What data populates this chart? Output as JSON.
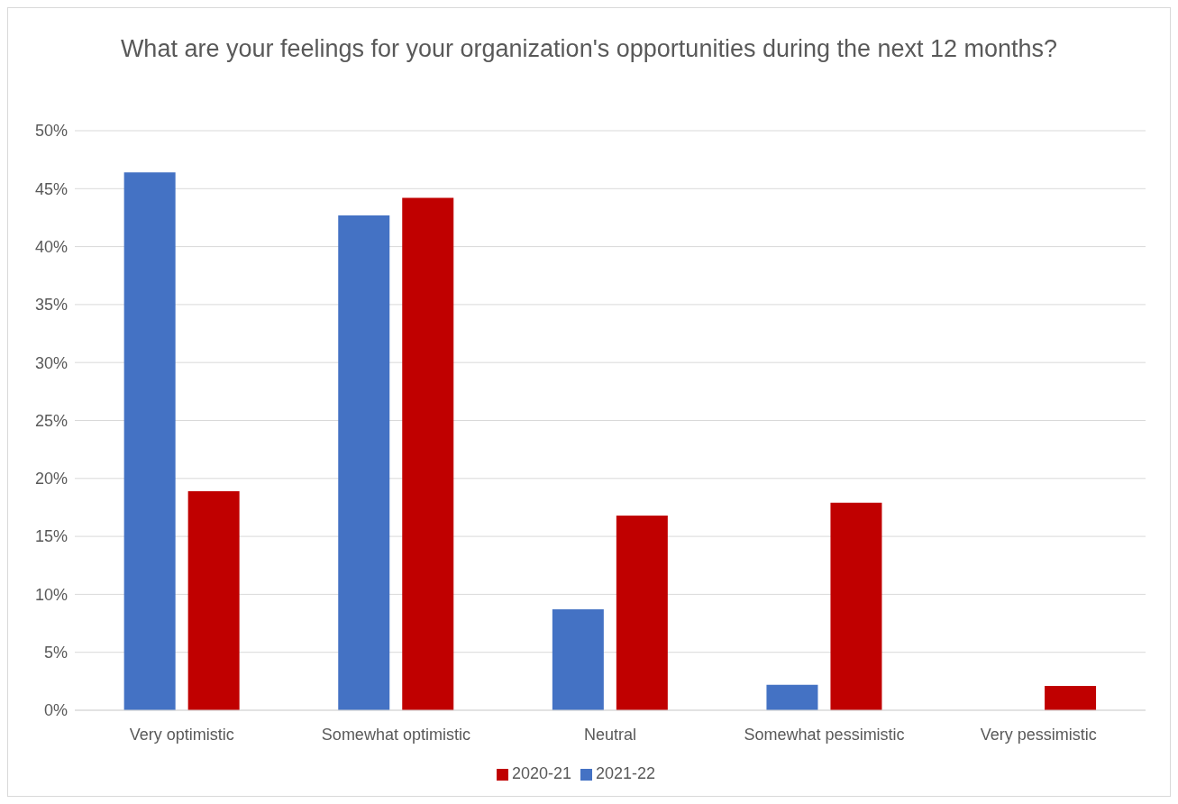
{
  "chart_data": {
    "type": "bar",
    "title": "What are your feelings for your organization's opportunities during the next 12 months?",
    "categories": [
      "Very optimistic",
      "Somewhat optimistic",
      "Neutral",
      "Somewhat pessimistic",
      "Very pessimistic"
    ],
    "series": [
      {
        "name": "2021-22",
        "color": "#4472c4",
        "values": [
          46.4,
          42.7,
          8.7,
          2.2,
          0
        ]
      },
      {
        "name": "2020-21",
        "color": "#c00000",
        "values": [
          18.9,
          44.2,
          16.8,
          17.9,
          2.1
        ]
      }
    ],
    "ylim": [
      0,
      50
    ],
    "yticks": [
      {
        "value": 0,
        "label": "0%"
      },
      {
        "value": 5,
        "label": "5%"
      },
      {
        "value": 10,
        "label": "10%"
      },
      {
        "value": 15,
        "label": "15%"
      },
      {
        "value": 20,
        "label": "20%"
      },
      {
        "value": 25,
        "label": "25%"
      },
      {
        "value": 30,
        "label": "30%"
      },
      {
        "value": 35,
        "label": "35%"
      },
      {
        "value": 40,
        "label": "40%"
      },
      {
        "value": 45,
        "label": "45%"
      },
      {
        "value": 50,
        "label": "50%"
      }
    ],
    "grid": "y",
    "legend": "bottom"
  }
}
